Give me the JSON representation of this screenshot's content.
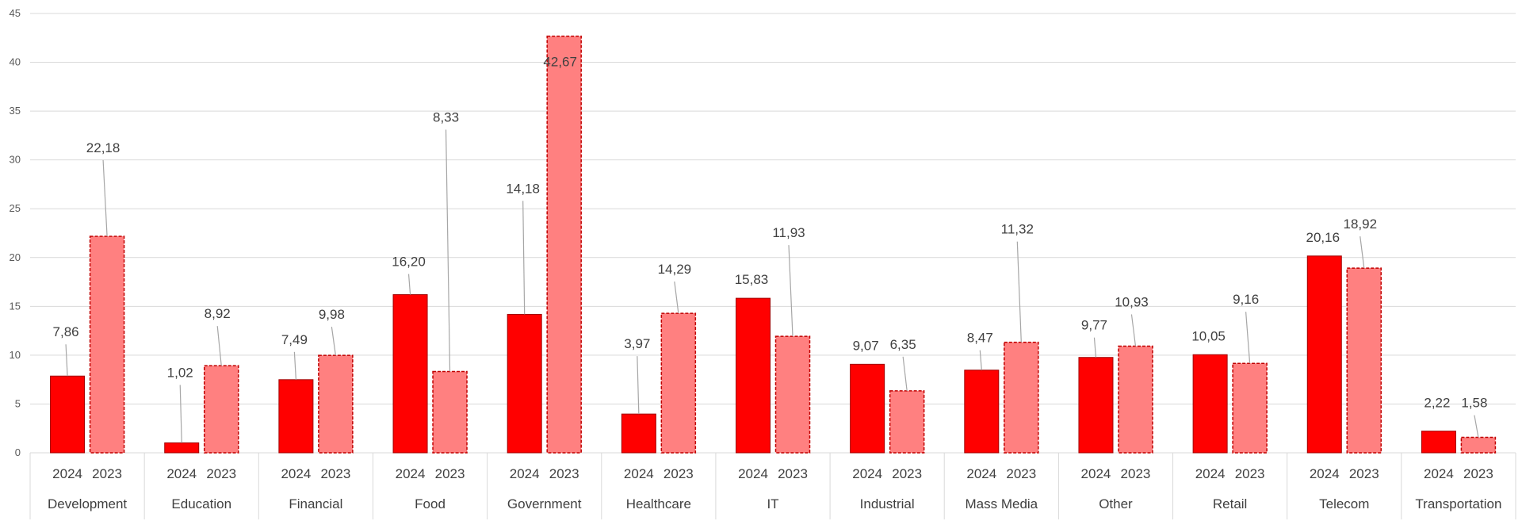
{
  "chart_data": {
    "type": "bar",
    "ylim": [
      0,
      45
    ],
    "yticks": [
      "0",
      "5",
      "10",
      "15",
      "20",
      "25",
      "30",
      "35",
      "40",
      "45"
    ],
    "grid": true,
    "colors": {
      "2024": "#ff0000",
      "2023": "#ff8080",
      "2023_border": "#c00000"
    },
    "categories": [
      "Development",
      "Education",
      "Financial",
      "Food",
      "Government",
      "Healthcare",
      "IT",
      "Industrial",
      "Mass Media",
      "Other",
      "Retail",
      "Telecom",
      "Transportation"
    ],
    "series": [
      {
        "name": "2024",
        "values": [
          7.86,
          1.02,
          7.49,
          16.2,
          14.18,
          3.97,
          15.83,
          9.07,
          8.47,
          9.77,
          10.05,
          20.16,
          2.22
        ],
        "labels": [
          "7,86",
          "1,02",
          "7,49",
          "16,20",
          "14,18",
          "3,97",
          "15,83",
          "9,07",
          "8,47",
          "9,77",
          "10,05",
          "20,16",
          "2,22"
        ]
      },
      {
        "name": "2023",
        "values": [
          22.18,
          8.92,
          9.98,
          8.33,
          42.67,
          14.29,
          11.93,
          6.35,
          11.32,
          10.93,
          9.16,
          18.92,
          1.58
        ],
        "labels": [
          "22,18",
          "8,92",
          "9,98",
          "8,33",
          "42,67",
          "14,29",
          "11,93",
          "6,35",
          "11,32",
          "10,93",
          "9,16",
          "18,92",
          "1,58"
        ]
      }
    ]
  }
}
